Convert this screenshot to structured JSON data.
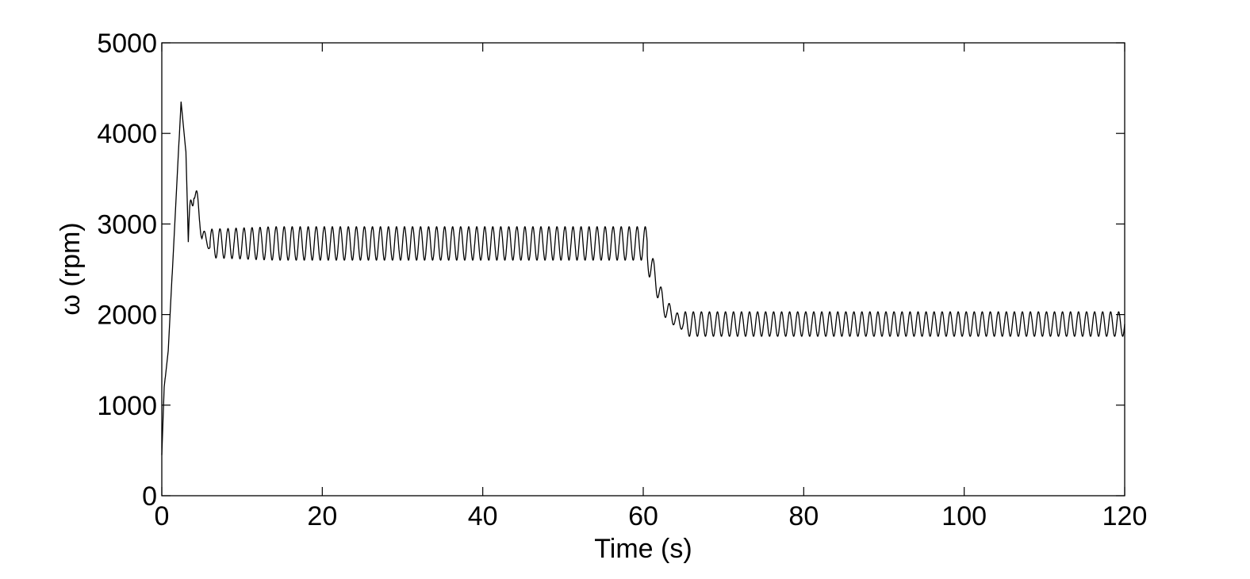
{
  "chart_data": {
    "type": "line",
    "title": "",
    "xlabel": "Time (s)",
    "ylabel": "ω (rpm)",
    "xlim": [
      0,
      120
    ],
    "ylim": [
      0,
      5000
    ],
    "xticks": [
      0,
      20,
      40,
      60,
      80,
      100,
      120
    ],
    "yticks": [
      0,
      1000,
      2000,
      3000,
      4000,
      5000
    ],
    "grid": false,
    "legend": "none",
    "series": [
      {
        "color": "#000000",
        "description_points": {
          "x": [
            0,
            0.3,
            0.8,
            1.5,
            2.4,
            3.0,
            3.2,
            3.3,
            4.0,
            5.0,
            6.0,
            10,
            20,
            40,
            60,
            60.5,
            61.5,
            62.5,
            64,
            66,
            70,
            120
          ],
          "y": [
            450,
            1200,
            1600,
            2800,
            4350,
            3800,
            3150,
            2800,
            3450,
            2900,
            2750,
            2650,
            2700,
            2720,
            2720,
            2650,
            2400,
            2100,
            1950,
            1850,
            1860,
            1880
          ]
        },
        "oscillation_period_s": 1.0,
        "segment_1": {
          "x_range": [
            6,
            60.5
          ],
          "low": 2600,
          "high": 2970
        },
        "segment_2": {
          "x_range": [
            65,
            120
          ],
          "low": 1760,
          "high": 2030
        }
      }
    ]
  }
}
